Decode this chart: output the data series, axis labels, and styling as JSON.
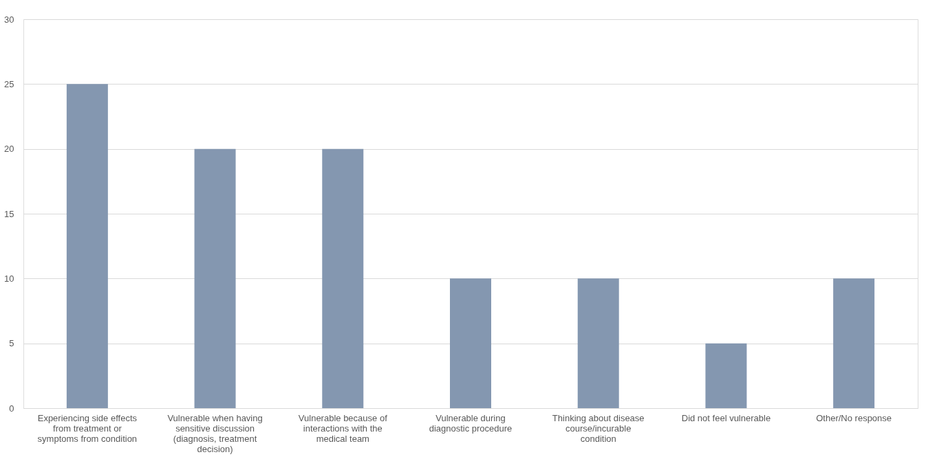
{
  "chart_data": {
    "type": "bar",
    "categories": [
      "Experiencing side effects from treatment or symptoms from condition",
      "Vulnerable when having sensitive discussion (diagnosis, treatment decision)",
      "Vulnerable because of interactions with the medical team",
      "Vulnerable during diagnostic procedure",
      "Thinking about disease course/incurable condition",
      "Did not feel vulnerable",
      "Other/No response"
    ],
    "values": [
      25,
      20,
      20,
      10,
      10,
      5,
      10
    ],
    "color": "#8497b0",
    "ylim": [
      0,
      30
    ],
    "yticks": [
      0,
      5,
      10,
      15,
      20,
      25,
      30
    ],
    "grid": "y"
  }
}
